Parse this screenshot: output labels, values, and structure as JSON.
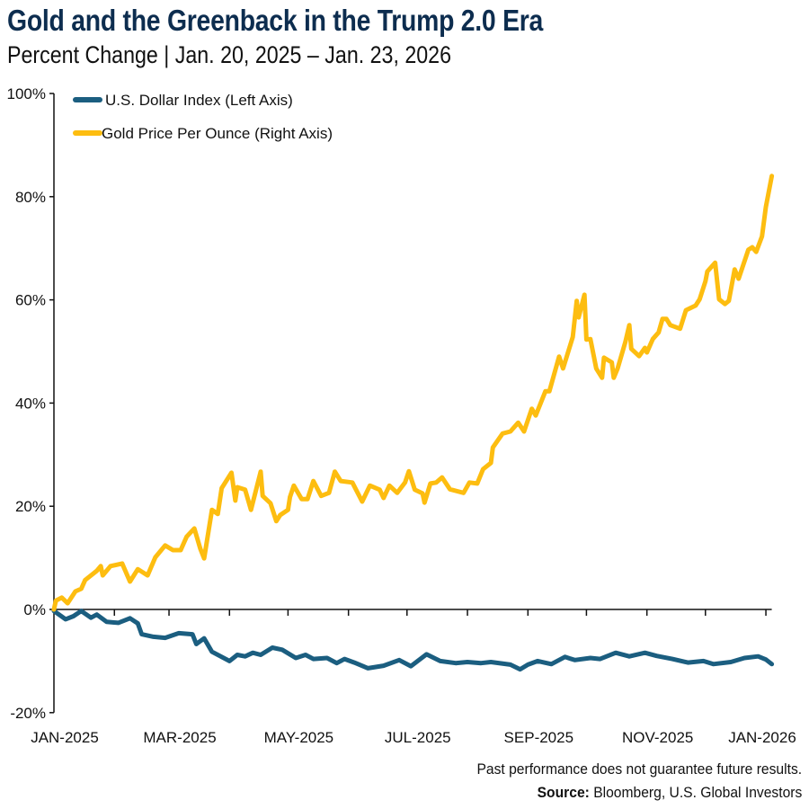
{
  "chart_data": {
    "type": "line",
    "title": "Gold and the Greenback in the Trump 2.0 Era",
    "subtitle": "Percent Change | Jan. 20, 2025 – Jan. 23, 2026",
    "xlabel": "",
    "ylabel": "",
    "ylim": [
      -20,
      100
    ],
    "yticks": [
      "-20%",
      "0%",
      "20%",
      "40%",
      "60%",
      "80%",
      "100%"
    ],
    "ytick_values": [
      -20,
      0,
      20,
      40,
      60,
      80,
      100
    ],
    "xlim": [
      "2025-01-20",
      "2026-01-23"
    ],
    "xtick_labels": [
      "JAN-2025",
      "MAR-2025",
      "MAY-2025",
      "JUL-2025",
      "SEP-2025",
      "NOV-2025",
      "JAN-2026"
    ],
    "grid": false,
    "legend_position": "top-left",
    "series": [
      {
        "name": "U.S. Dollar Index (Left Axis)",
        "color": "#1b5e80",
        "points": [
          [
            "2025-01-20",
            -0.3
          ],
          [
            "2025-01-26",
            -1.9
          ],
          [
            "2025-01-30",
            -1.3
          ],
          [
            "2025-02-03",
            -0.3
          ],
          [
            "2025-02-08",
            -1.6
          ],
          [
            "2025-02-11",
            -1.0
          ],
          [
            "2025-02-16",
            -2.4
          ],
          [
            "2025-02-22",
            -2.6
          ],
          [
            "2025-02-28",
            -1.7
          ],
          [
            "2025-03-04",
            -2.7
          ],
          [
            "2025-03-06",
            -4.8
          ],
          [
            "2025-03-12",
            -5.3
          ],
          [
            "2025-03-18",
            -5.5
          ],
          [
            "2025-03-25",
            -4.6
          ],
          [
            "2025-04-01",
            -4.8
          ],
          [
            "2025-04-03",
            -6.7
          ],
          [
            "2025-04-07",
            -5.6
          ],
          [
            "2025-04-11",
            -8.2
          ],
          [
            "2025-04-20",
            -10.0
          ],
          [
            "2025-04-24",
            -8.8
          ],
          [
            "2025-04-28",
            -9.1
          ],
          [
            "2025-05-02",
            -8.4
          ],
          [
            "2025-05-06",
            -8.8
          ],
          [
            "2025-05-12",
            -7.4
          ],
          [
            "2025-05-17",
            -7.8
          ],
          [
            "2025-05-24",
            -9.4
          ],
          [
            "2025-05-29",
            -8.8
          ],
          [
            "2025-06-02",
            -9.6
          ],
          [
            "2025-06-09",
            -9.4
          ],
          [
            "2025-06-14",
            -10.4
          ],
          [
            "2025-06-18",
            -9.6
          ],
          [
            "2025-06-23",
            -10.3
          ],
          [
            "2025-06-30",
            -11.4
          ],
          [
            "2025-07-08",
            -10.9
          ],
          [
            "2025-07-16",
            -9.8
          ],
          [
            "2025-07-22",
            -11.0
          ],
          [
            "2025-07-30",
            -8.7
          ],
          [
            "2025-08-06",
            -10.0
          ],
          [
            "2025-08-14",
            -10.4
          ],
          [
            "2025-08-20",
            -10.2
          ],
          [
            "2025-08-27",
            -10.4
          ],
          [
            "2025-09-01",
            -10.2
          ],
          [
            "2025-09-11",
            -10.7
          ],
          [
            "2025-09-16",
            -11.6
          ],
          [
            "2025-09-20",
            -10.7
          ],
          [
            "2025-09-25",
            -10.0
          ],
          [
            "2025-10-02",
            -10.6
          ],
          [
            "2025-10-09",
            -9.2
          ],
          [
            "2025-10-14",
            -9.8
          ],
          [
            "2025-10-22",
            -9.4
          ],
          [
            "2025-10-27",
            -9.6
          ],
          [
            "2025-11-04",
            -8.4
          ],
          [
            "2025-11-11",
            -9.1
          ],
          [
            "2025-11-19",
            -8.4
          ],
          [
            "2025-11-25",
            -9.0
          ],
          [
            "2025-12-03",
            -9.6
          ],
          [
            "2025-12-11",
            -10.3
          ],
          [
            "2025-12-19",
            -10.0
          ],
          [
            "2025-12-24",
            -10.6
          ],
          [
            "2026-01-02",
            -10.2
          ],
          [
            "2026-01-09",
            -9.4
          ],
          [
            "2026-01-16",
            -9.1
          ],
          [
            "2026-01-20",
            -9.7
          ],
          [
            "2026-01-23",
            -10.6
          ]
        ]
      },
      {
        "name": "Gold Price Per Ounce (Right Axis)",
        "color": "#fdbd10",
        "points": [
          [
            "2025-01-20",
            0
          ],
          [
            "2025-01-21",
            1.7
          ],
          [
            "2025-01-24",
            2.3
          ],
          [
            "2025-01-27",
            1.2
          ],
          [
            "2025-01-31",
            3.5
          ],
          [
            "2025-02-03",
            4.0
          ],
          [
            "2025-02-05",
            5.7
          ],
          [
            "2025-02-11",
            7.5
          ],
          [
            "2025-02-13",
            8.4
          ],
          [
            "2025-02-14",
            6.6
          ],
          [
            "2025-02-18",
            8.4
          ],
          [
            "2025-02-24",
            8.9
          ],
          [
            "2025-02-28",
            5.4
          ],
          [
            "2025-03-04",
            7.8
          ],
          [
            "2025-03-09",
            6.6
          ],
          [
            "2025-03-13",
            10.1
          ],
          [
            "2025-03-18",
            12.4
          ],
          [
            "2025-03-22",
            11.5
          ],
          [
            "2025-03-26",
            11.5
          ],
          [
            "2025-03-29",
            14.1
          ],
          [
            "2025-04-02",
            15.7
          ],
          [
            "2025-04-05",
            11.8
          ],
          [
            "2025-04-07",
            9.9
          ],
          [
            "2025-04-11",
            19.3
          ],
          [
            "2025-04-14",
            18.5
          ],
          [
            "2025-04-16",
            23.5
          ],
          [
            "2025-04-21",
            26.5
          ],
          [
            "2025-04-23",
            21.1
          ],
          [
            "2025-04-24",
            23.7
          ],
          [
            "2025-04-28",
            23.2
          ],
          [
            "2025-05-01",
            19.3
          ],
          [
            "2025-05-06",
            26.7
          ],
          [
            "2025-05-07",
            22.0
          ],
          [
            "2025-05-11",
            20.6
          ],
          [
            "2025-05-14",
            17.1
          ],
          [
            "2025-05-16",
            18.3
          ],
          [
            "2025-05-20",
            19.3
          ],
          [
            "2025-05-21",
            21.8
          ],
          [
            "2025-05-23",
            24.0
          ],
          [
            "2025-05-27",
            21.4
          ],
          [
            "2025-05-30",
            21.4
          ],
          [
            "2025-06-02",
            24.9
          ],
          [
            "2025-06-06",
            22.0
          ],
          [
            "2025-06-10",
            22.6
          ],
          [
            "2025-06-13",
            26.7
          ],
          [
            "2025-06-16",
            24.9
          ],
          [
            "2025-06-22",
            24.6
          ],
          [
            "2025-06-27",
            20.9
          ],
          [
            "2025-07-01",
            24.0
          ],
          [
            "2025-07-06",
            23.2
          ],
          [
            "2025-07-08",
            21.6
          ],
          [
            "2025-07-11",
            24.0
          ],
          [
            "2025-07-15",
            22.6
          ],
          [
            "2025-07-19",
            24.6
          ],
          [
            "2025-07-21",
            26.8
          ],
          [
            "2025-07-24",
            23.2
          ],
          [
            "2025-07-28",
            22.5
          ],
          [
            "2025-07-29",
            20.7
          ],
          [
            "2025-08-01",
            24.4
          ],
          [
            "2025-08-04",
            24.6
          ],
          [
            "2025-08-07",
            25.6
          ],
          [
            "2025-08-11",
            23.3
          ],
          [
            "2025-08-18",
            22.6
          ],
          [
            "2025-08-21",
            24.6
          ],
          [
            "2025-08-25",
            24.4
          ],
          [
            "2025-08-28",
            27.2
          ],
          [
            "2025-09-01",
            28.4
          ],
          [
            "2025-09-02",
            31.4
          ],
          [
            "2025-09-07",
            34.1
          ],
          [
            "2025-09-11",
            34.5
          ],
          [
            "2025-09-15",
            36.2
          ],
          [
            "2025-09-18",
            34.5
          ],
          [
            "2025-09-22",
            38.9
          ],
          [
            "2025-09-24",
            37.6
          ],
          [
            "2025-09-29",
            42.3
          ],
          [
            "2025-10-01",
            42.3
          ],
          [
            "2025-10-06",
            49.0
          ],
          [
            "2025-10-08",
            46.7
          ],
          [
            "2025-10-13",
            52.8
          ],
          [
            "2025-10-15",
            59.8
          ],
          [
            "2025-10-16",
            56.6
          ],
          [
            "2025-10-19",
            61.0
          ],
          [
            "2025-10-20",
            52.3
          ],
          [
            "2025-10-22",
            52.4
          ],
          [
            "2025-10-25",
            46.7
          ],
          [
            "2025-10-28",
            44.9
          ],
          [
            "2025-10-29",
            48.8
          ],
          [
            "2025-11-02",
            47.9
          ],
          [
            "2025-11-03",
            44.9
          ],
          [
            "2025-11-05",
            46.7
          ],
          [
            "2025-11-09",
            51.9
          ],
          [
            "2025-11-11",
            55.1
          ],
          [
            "2025-11-12",
            50.5
          ],
          [
            "2025-11-16",
            49.1
          ],
          [
            "2025-11-19",
            50.7
          ],
          [
            "2025-11-20",
            49.8
          ],
          [
            "2025-11-23",
            52.4
          ],
          [
            "2025-11-26",
            53.7
          ],
          [
            "2025-11-28",
            56.3
          ],
          [
            "2025-11-30",
            56.3
          ],
          [
            "2025-12-02",
            55.1
          ],
          [
            "2025-12-07",
            54.4
          ],
          [
            "2025-12-10",
            58.0
          ],
          [
            "2025-12-15",
            58.9
          ],
          [
            "2025-12-17",
            60.1
          ],
          [
            "2025-12-20",
            63.6
          ],
          [
            "2025-12-21",
            65.5
          ],
          [
            "2025-12-25",
            67.2
          ],
          [
            "2025-12-27",
            60.1
          ],
          [
            "2025-12-30",
            59.2
          ],
          [
            "2026-01-01",
            59.8
          ],
          [
            "2026-01-04",
            65.9
          ],
          [
            "2026-01-06",
            64.1
          ],
          [
            "2026-01-11",
            69.7
          ],
          [
            "2026-01-13",
            70.2
          ],
          [
            "2026-01-15",
            69.3
          ],
          [
            "2026-01-18",
            72.3
          ],
          [
            "2026-01-20",
            78.0
          ],
          [
            "2026-01-23",
            84.0
          ]
        ]
      }
    ]
  },
  "footer": {
    "disclaimer": "Past performance does not guarantee future results.",
    "source_label": "Source:",
    "source_text": " Bloomberg, U.S. Global Investors"
  }
}
